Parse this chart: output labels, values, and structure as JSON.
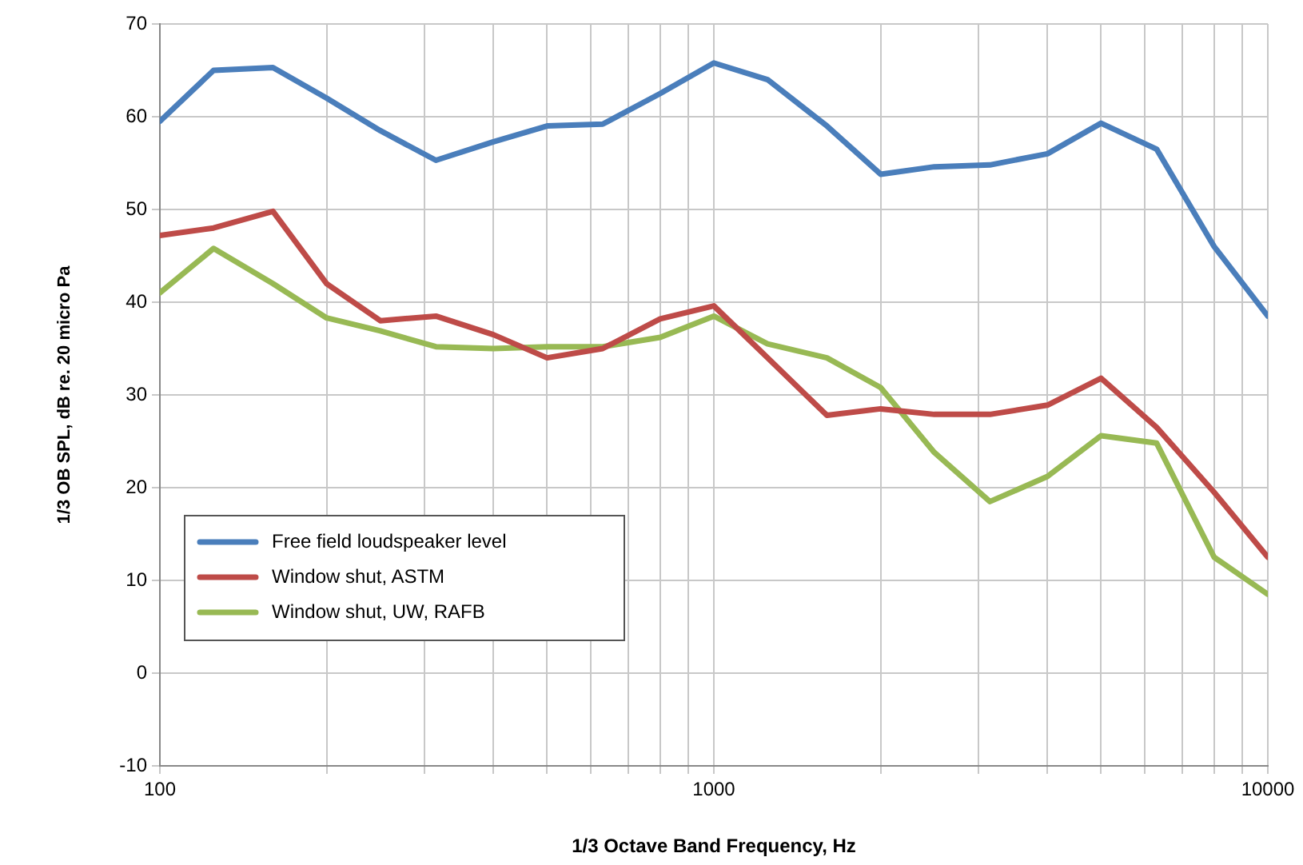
{
  "chart_data": {
    "type": "line",
    "xlabel": "1/3 Octave Band Frequency, Hz",
    "ylabel": "1/3 OB SPL, dB re. 20 micro Pa",
    "x": [
      100,
      125,
      160,
      200,
      250,
      315,
      400,
      500,
      630,
      800,
      1000,
      1250,
      1600,
      2000,
      2500,
      3150,
      4000,
      5000,
      6300,
      8000,
      10000
    ],
    "series": [
      {
        "name": "Free field loudspeaker level",
        "color": "#4a7ebb",
        "values": [
          59.5,
          65,
          65.3,
          62,
          58.5,
          55.3,
          57.3,
          59,
          59.2,
          62.5,
          65.8,
          64,
          59,
          53.8,
          54.6,
          54.8,
          56,
          59.3,
          56.5,
          46,
          38.5
        ]
      },
      {
        "name": "Window shut, ASTM",
        "color": "#be4b48",
        "values": [
          47.2,
          48,
          49.8,
          42,
          38,
          38.5,
          36.5,
          34,
          35,
          38.2,
          39.6,
          34,
          27.8,
          28.5,
          27.9,
          27.9,
          28.9,
          31.8,
          26.5,
          19.5,
          12.5
        ]
      },
      {
        "name": "Window shut, UW, RAFB",
        "color": "#98b954",
        "values": [
          41,
          45.8,
          42,
          38.3,
          36.9,
          35.2,
          35,
          35.2,
          35.2,
          36.2,
          38.5,
          35.5,
          34,
          30.8,
          23.8,
          18.5,
          21.2,
          25.6,
          24.8,
          12.5,
          8.5
        ]
      }
    ],
    "log": "x",
    "xlim": [
      100,
      10000
    ],
    "xticks": [
      100,
      {
        "value": 200,
        "label": null
      },
      {
        "value": 300,
        "label": null
      },
      {
        "value": 400,
        "label": null
      },
      {
        "value": 500,
        "label": null
      },
      {
        "value": 600,
        "label": null
      },
      {
        "value": 700,
        "label": null
      },
      {
        "value": 800,
        "label": null
      },
      {
        "value": 900,
        "label": null
      },
      1000,
      {
        "value": 2000,
        "label": null
      },
      {
        "value": 3000,
        "label": null
      },
      {
        "value": 4000,
        "label": null
      },
      {
        "value": 5000,
        "label": null
      },
      {
        "value": 6000,
        "label": null
      },
      {
        "value": 7000,
        "label": null
      },
      {
        "value": 8000,
        "label": null
      },
      {
        "value": 9000,
        "label": null
      },
      10000
    ],
    "ylim": [
      -10,
      70
    ],
    "yticks": [
      -10,
      0,
      10,
      20,
      30,
      40,
      50,
      60,
      70
    ],
    "grid": true,
    "legend": "bottom left",
    "marker": "none",
    "line_style": "solid"
  }
}
